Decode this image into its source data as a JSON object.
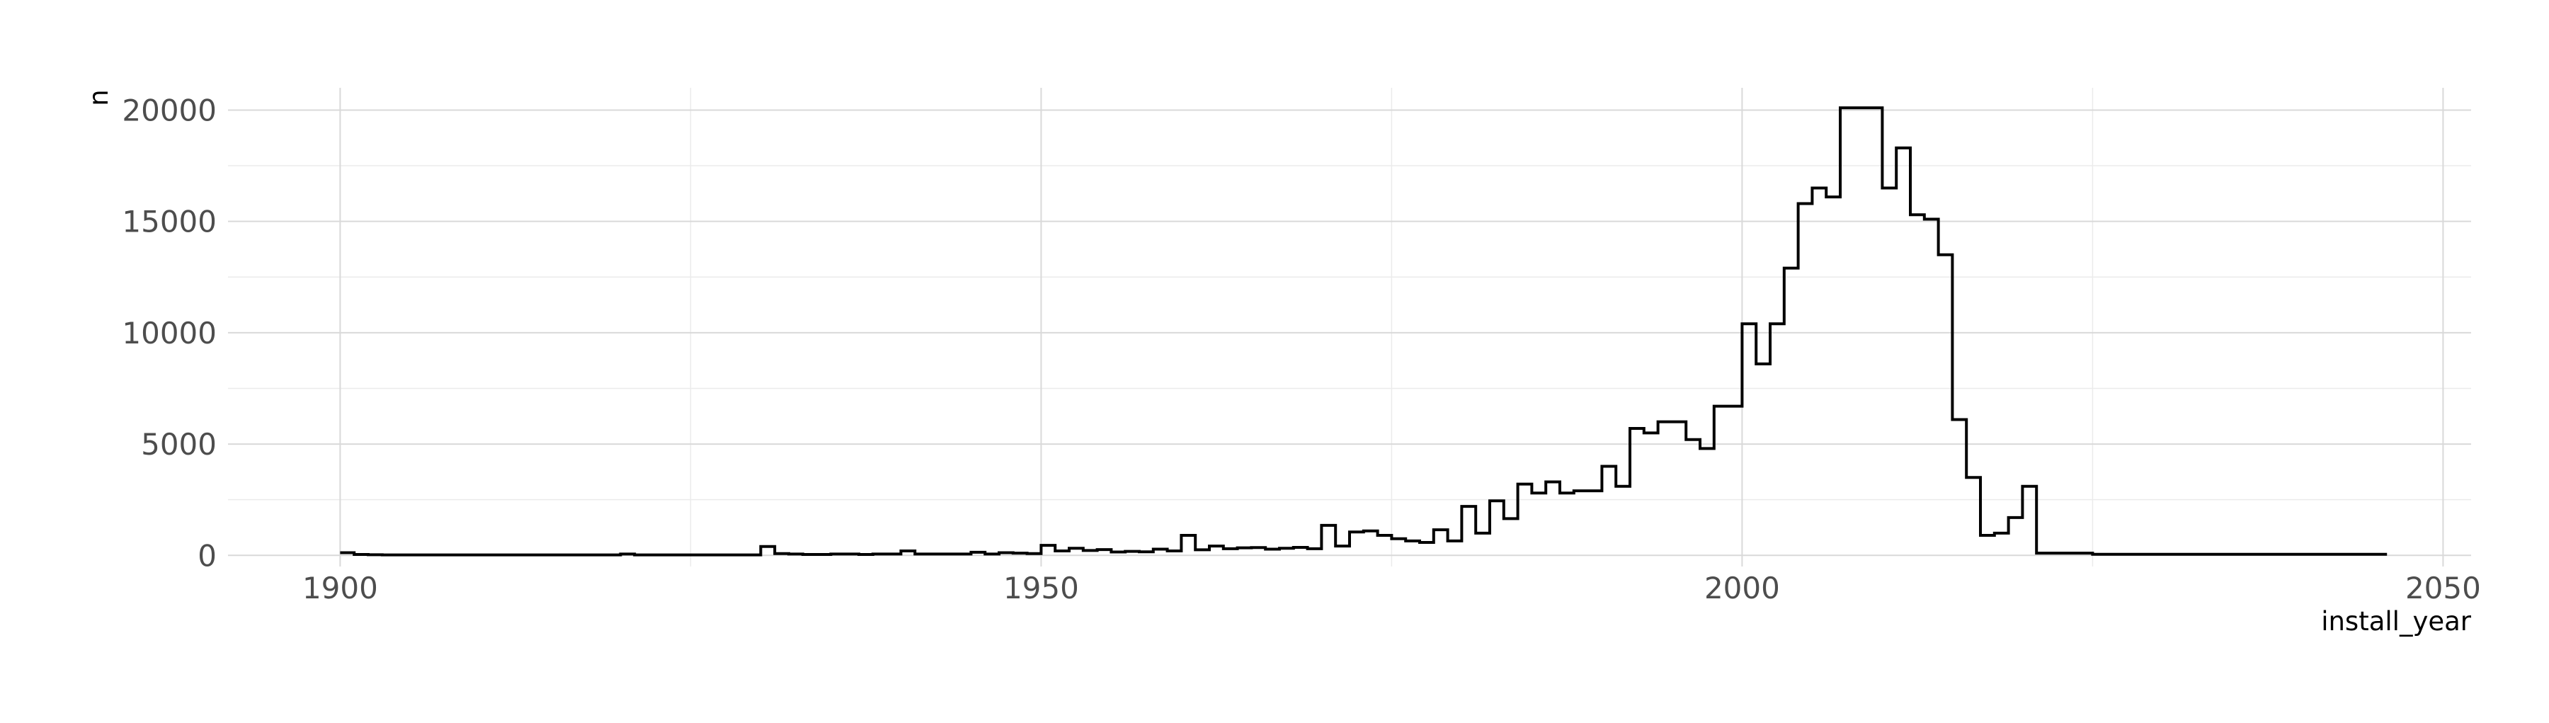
{
  "chart_data": {
    "type": "line",
    "subtype": "step",
    "title": "",
    "xlabel": "install_year",
    "ylabel": "n",
    "xlim": [
      1892,
      2052
    ],
    "ylim": [
      -500,
      21000
    ],
    "x_ticks": [
      1900,
      1950,
      2000,
      2050
    ],
    "y_ticks": [
      0,
      5000,
      10000,
      15000,
      20000
    ],
    "grid": true,
    "legend": "none",
    "line_color": "#000000",
    "series": [
      {
        "x": [
          1900,
          1901,
          1902,
          1903,
          1904,
          1905,
          1906,
          1907,
          1908,
          1909,
          1910,
          1911,
          1912,
          1913,
          1914,
          1915,
          1916,
          1917,
          1918,
          1919,
          1920,
          1921,
          1922,
          1923,
          1924,
          1925,
          1926,
          1927,
          1928,
          1929,
          1930,
          1931,
          1932,
          1933,
          1934,
          1935,
          1936,
          1937,
          1938,
          1939,
          1940,
          1941,
          1942,
          1943,
          1944,
          1945,
          1946,
          1947,
          1948,
          1949,
          1950,
          1951,
          1952,
          1953,
          1954,
          1955,
          1956,
          1957,
          1958,
          1959,
          1960,
          1961,
          1962,
          1963,
          1964,
          1965,
          1966,
          1967,
          1968,
          1969,
          1970,
          1971,
          1972,
          1973,
          1974,
          1975,
          1976,
          1977,
          1978,
          1979,
          1980,
          1981,
          1982,
          1983,
          1984,
          1985,
          1986,
          1987,
          1988,
          1989,
          1990,
          1991,
          1992,
          1993,
          1994,
          1995,
          1996,
          1997,
          1998,
          1999,
          2000,
          2001,
          2002,
          2003,
          2004,
          2005,
          2006,
          2007,
          2008,
          2009,
          2010,
          2011,
          2012,
          2013,
          2014,
          2015,
          2016,
          2017,
          2018,
          2019,
          2020,
          2021,
          2022,
          2023,
          2024,
          2025,
          2026,
          2027,
          2028,
          2029,
          2030,
          2031,
          2032,
          2033,
          2034,
          2035,
          2036,
          2037,
          2038,
          2039,
          2040,
          2041,
          2042,
          2043,
          2044,
          2045
        ],
        "values": [
          120,
          40,
          30,
          20,
          20,
          20,
          20,
          20,
          20,
          20,
          20,
          20,
          20,
          20,
          20,
          20,
          20,
          20,
          20,
          20,
          60,
          20,
          20,
          20,
          20,
          20,
          20,
          20,
          20,
          20,
          400,
          80,
          60,
          40,
          40,
          60,
          60,
          40,
          60,
          60,
          200,
          60,
          60,
          60,
          60,
          140,
          60,
          120,
          100,
          80,
          450,
          200,
          320,
          220,
          260,
          150,
          180,
          160,
          280,
          200,
          900,
          250,
          420,
          300,
          340,
          350,
          280,
          320,
          360,
          300,
          1350,
          420,
          1050,
          1100,
          900,
          750,
          650,
          580,
          1150,
          650,
          2200,
          1000,
          2450,
          1650,
          3200,
          2800,
          3300,
          2800,
          2900,
          2900,
          4000,
          3100,
          5700,
          5500,
          6000,
          6000,
          5200,
          4800,
          6700,
          6700,
          10400,
          8600,
          10400,
          12900,
          15800,
          16500,
          16100,
          20100,
          20100,
          20100,
          16500,
          18300,
          15300,
          15100,
          13500,
          6100,
          3500,
          900,
          1000,
          1700,
          3100,
          100,
          100,
          100,
          100,
          50,
          50,
          50,
          50,
          50,
          50,
          50,
          50,
          50,
          50,
          50,
          50,
          50,
          50,
          50,
          50,
          50,
          50,
          50,
          50,
          50
        ]
      }
    ]
  }
}
